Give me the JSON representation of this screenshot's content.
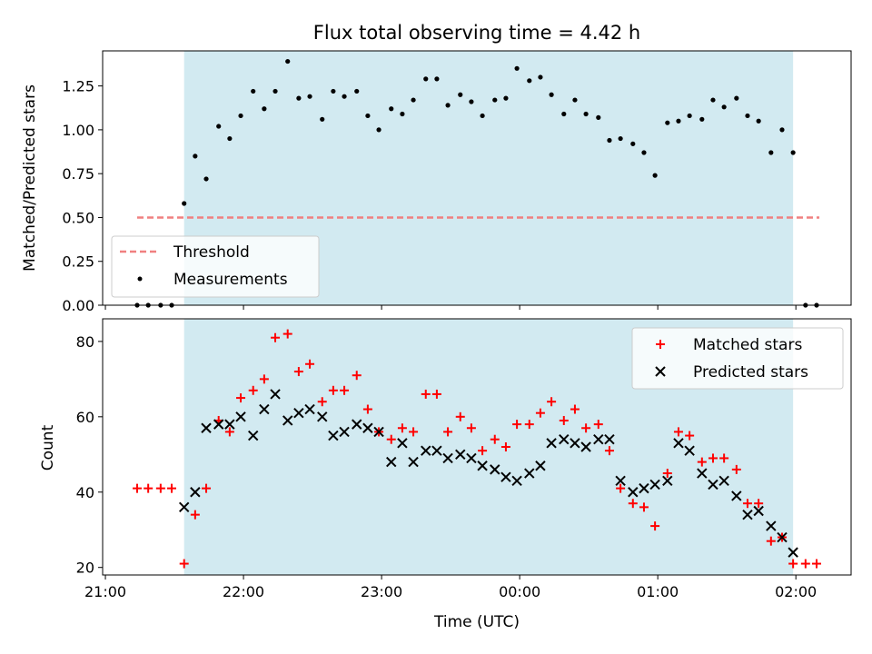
{
  "chart_data": [
    {
      "type": "scatter",
      "panel": "top",
      "title": "Flux total observing time = 4.42 h",
      "xlabel": "",
      "ylabel": "Matched/Predicted stars",
      "ylim": [
        0,
        1.45
      ],
      "yticks": [
        "0.00",
        "0.25",
        "0.50",
        "0.75",
        "1.00",
        "1.25"
      ],
      "shaded_region": {
        "x_start": 21.57,
        "x_end": 25.98,
        "color": "#add8e6"
      },
      "threshold": {
        "name": "Threshold",
        "value": 0.5,
        "x_start": 21.23,
        "x_end": 26.17,
        "color": "#f08080"
      },
      "legend": {
        "position": "lower-left",
        "entries": [
          "Threshold",
          "Measurements"
        ]
      },
      "series": [
        {
          "name": "Measurements",
          "marker": "dot",
          "color": "#000000",
          "x": [
            21.23,
            21.31,
            21.4,
            21.48,
            21.57,
            21.65,
            21.73,
            21.82,
            21.9,
            21.98,
            22.07,
            22.15,
            22.23,
            22.32,
            22.4,
            22.48,
            22.57,
            22.65,
            22.73,
            22.82,
            22.9,
            22.98,
            23.07,
            23.15,
            23.23,
            23.32,
            23.4,
            23.48,
            23.57,
            23.65,
            23.73,
            23.82,
            23.9,
            23.98,
            24.07,
            24.15,
            24.23,
            24.32,
            24.4,
            24.48,
            24.57,
            24.65,
            24.73,
            24.82,
            24.9,
            24.98,
            25.07,
            25.15,
            25.23,
            25.32,
            25.4,
            25.48,
            25.57,
            25.65,
            25.73,
            25.82,
            25.9,
            25.98,
            26.07,
            26.15
          ],
          "y": [
            0,
            0,
            0,
            0,
            0.58,
            0.85,
            0.72,
            1.02,
            0.95,
            1.08,
            1.22,
            1.12,
            1.22,
            1.39,
            1.18,
            1.19,
            1.06,
            1.22,
            1.19,
            1.22,
            1.08,
            1.0,
            1.12,
            1.09,
            1.17,
            1.29,
            1.29,
            1.14,
            1.2,
            1.16,
            1.08,
            1.17,
            1.18,
            1.35,
            1.28,
            1.3,
            1.2,
            1.09,
            1.17,
            1.09,
            1.07,
            0.94,
            0.95,
            0.92,
            0.87,
            0.74,
            1.04,
            1.05,
            1.08,
            1.06,
            1.17,
            1.13,
            1.18,
            1.08,
            1.05,
            0.87,
            1.0,
            0.87,
            0,
            0
          ]
        }
      ]
    },
    {
      "type": "scatter",
      "panel": "bottom",
      "xlabel": "Time (UTC)",
      "ylabel": "Count",
      "ylim": [
        18,
        86
      ],
      "yticks": [
        "20",
        "40",
        "60",
        "80"
      ],
      "xlim": [
        20.98,
        26.4
      ],
      "xticks": [
        {
          "value": 21,
          "label": "21:00"
        },
        {
          "value": 22,
          "label": "22:00"
        },
        {
          "value": 23,
          "label": "23:00"
        },
        {
          "value": 24,
          "label": "00:00"
        },
        {
          "value": 25,
          "label": "01:00"
        },
        {
          "value": 26,
          "label": "02:00"
        }
      ],
      "shaded_region": {
        "x_start": 21.57,
        "x_end": 25.98,
        "color": "#add8e6"
      },
      "legend": {
        "position": "top-right",
        "entries": [
          "Matched stars",
          "Predicted stars"
        ]
      },
      "series": [
        {
          "name": "Matched stars",
          "marker": "plus",
          "color": "#ff0000",
          "x": [
            21.23,
            21.31,
            21.4,
            21.48,
            21.57,
            21.65,
            21.73,
            21.82,
            21.9,
            21.98,
            22.07,
            22.15,
            22.23,
            22.32,
            22.4,
            22.48,
            22.57,
            22.65,
            22.73,
            22.82,
            22.9,
            22.98,
            23.07,
            23.15,
            23.23,
            23.32,
            23.4,
            23.48,
            23.57,
            23.65,
            23.73,
            23.82,
            23.9,
            23.98,
            24.07,
            24.15,
            24.23,
            24.32,
            24.4,
            24.48,
            24.57,
            24.65,
            24.73,
            24.82,
            24.9,
            24.98,
            25.07,
            25.15,
            25.23,
            25.32,
            25.4,
            25.48,
            25.57,
            25.65,
            25.73,
            25.82,
            25.9,
            25.98,
            26.07,
            26.15
          ],
          "y": [
            41,
            41,
            41,
            41,
            21,
            34,
            41,
            59,
            56,
            65,
            67,
            70,
            81,
            82,
            72,
            74,
            64,
            67,
            67,
            71,
            62,
            56,
            54,
            57,
            56,
            66,
            66,
            56,
            60,
            57,
            51,
            54,
            52,
            58,
            58,
            61,
            64,
            59,
            62,
            57,
            58,
            51,
            41,
            37,
            36,
            31,
            45,
            56,
            55,
            48,
            49,
            49,
            46,
            37,
            37,
            27,
            28,
            21,
            21,
            21
          ]
        },
        {
          "name": "Predicted stars",
          "marker": "x",
          "color": "#000000",
          "x": [
            21.57,
            21.65,
            21.73,
            21.82,
            21.9,
            21.98,
            22.07,
            22.15,
            22.23,
            22.32,
            22.4,
            22.48,
            22.57,
            22.65,
            22.73,
            22.82,
            22.9,
            22.98,
            23.07,
            23.15,
            23.23,
            23.32,
            23.4,
            23.48,
            23.57,
            23.65,
            23.73,
            23.82,
            23.9,
            23.98,
            24.07,
            24.15,
            24.23,
            24.32,
            24.4,
            24.48,
            24.57,
            24.65,
            24.73,
            24.82,
            24.9,
            24.98,
            25.07,
            25.15,
            25.23,
            25.32,
            25.4,
            25.48,
            25.57,
            25.65,
            25.73,
            25.82,
            25.9,
            25.98
          ],
          "y": [
            36,
            40,
            57,
            58,
            58,
            60,
            55,
            62,
            66,
            59,
            61,
            62,
            60,
            55,
            56,
            58,
            57,
            56,
            48,
            53,
            48,
            51,
            51,
            49,
            50,
            49,
            47,
            46,
            44,
            43,
            45,
            47,
            53,
            54,
            53,
            52,
            54,
            54,
            43,
            40,
            41,
            42,
            43,
            53,
            51,
            45,
            42,
            43,
            39,
            34,
            35,
            31,
            28,
            24
          ]
        }
      ]
    }
  ]
}
